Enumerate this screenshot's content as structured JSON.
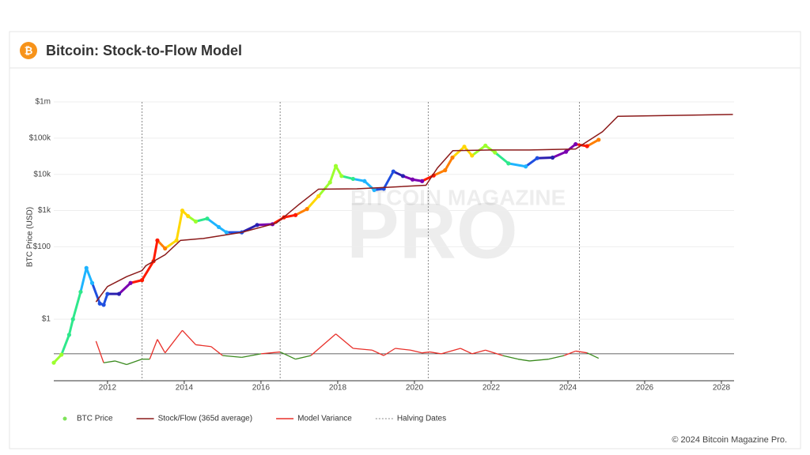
{
  "header": {
    "icon": "₿",
    "title": "Bitcoin: Stock-to-Flow Model"
  },
  "footer": "© 2024 Bitcoin Magazine Pro.",
  "chart_data": {
    "type": "line",
    "y_label": "BTC Price (USD)",
    "watermark": [
      "BITCOIN MAGAZINE",
      "PRO"
    ],
    "log_y": true,
    "xlim": [
      2010.6,
      2028.33
    ],
    "xticks": [
      2012,
      2014,
      2016,
      2018,
      2020,
      2022,
      2024,
      2026,
      2028
    ],
    "ylim": [
      0.02,
      1000000
    ],
    "yticks": [
      {
        "value": 1,
        "label": "$1"
      },
      {
        "value": 100,
        "label": "$100"
      },
      {
        "value": 1000,
        "label": "$1k"
      },
      {
        "value": 10000,
        "label": "$10k"
      },
      {
        "value": 100000,
        "label": "$100k"
      },
      {
        "value": 1000000,
        "label": "$1m"
      }
    ],
    "y2lim": [
      -1.5,
      14
    ],
    "colorscale": [
      "#ff1a00",
      "#ff7f00",
      "#ffd700",
      "#9cff2e",
      "#2ee88c",
      "#1eb4ff",
      "#1f4fe0",
      "#2a1fb0",
      "#7a00b0"
    ],
    "series": [
      {
        "name": "BTC Price",
        "color": "#7ee35a",
        "mode": "markers",
        "x": [
          2010.6,
          2010.8,
          2011.0,
          2011.1,
          2011.3,
          2011.45,
          2011.6,
          2011.8,
          2011.9,
          2012.0,
          2012.3,
          2012.6,
          2012.9,
          2013.2,
          2013.3,
          2013.5,
          2013.8,
          2013.95,
          2014.1,
          2014.3,
          2014.6,
          2014.9,
          2015.1,
          2015.5,
          2015.9,
          2016.3,
          2016.6,
          2016.9,
          2017.2,
          2017.5,
          2017.8,
          2017.95,
          2018.1,
          2018.4,
          2018.7,
          2018.95,
          2019.2,
          2019.45,
          2019.7,
          2019.95,
          2020.2,
          2020.5,
          2020.8,
          2020.99,
          2021.3,
          2021.5,
          2021.85,
          2022.1,
          2022.45,
          2022.9,
          2023.2,
          2023.6,
          2023.95,
          2024.2,
          2024.5,
          2024.8
        ],
        "values": [
          0.063,
          0.105,
          0.37,
          1,
          5.7,
          26,
          10,
          2.7,
          2.5,
          5,
          5,
          10,
          12,
          40,
          150,
          90,
          150,
          1000,
          700,
          500,
          600,
          350,
          250,
          250,
          400,
          420,
          650,
          750,
          1100,
          2500,
          6000,
          17000,
          9000,
          7500,
          6500,
          3700,
          4000,
          12000,
          9000,
          7200,
          6500,
          9300,
          13000,
          29000,
          58000,
          33000,
          62000,
          40000,
          20000,
          16500,
          28000,
          29000,
          42000,
          68000,
          60000,
          90000
        ]
      },
      {
        "name": "Stock/Flow (365d average)",
        "color": "#8b1a1a",
        "mode": "line",
        "x": [
          2011.7,
          2012.0,
          2012.5,
          2012.9,
          2013.0,
          2013.5,
          2013.9,
          2014.5,
          2015.5,
          2016.4,
          2016.55,
          2017.0,
          2017.5,
          2018.5,
          2019.5,
          2020.3,
          2020.6,
          2021.0,
          2022.0,
          2023.0,
          2024.2,
          2024.5,
          2024.9,
          2025.3,
          2028.3
        ],
        "values": [
          3,
          8,
          15,
          22,
          30,
          60,
          150,
          170,
          250,
          450,
          600,
          1500,
          3900,
          4000,
          4500,
          5000,
          15000,
          45000,
          47000,
          47000,
          50000,
          80000,
          150000,
          400000,
          450000
        ]
      },
      {
        "name": "Model Variance",
        "color": "#e8302a",
        "negative_color": "#3a8a1e",
        "mode": "line",
        "axis": "y2",
        "x": [
          2011.7,
          2011.9,
          2012.2,
          2012.5,
          2012.9,
          2013.1,
          2013.3,
          2013.5,
          2013.95,
          2014.3,
          2014.7,
          2015.0,
          2015.5,
          2016.0,
          2016.5,
          2016.9,
          2017.3,
          2017.95,
          2018.4,
          2018.9,
          2019.2,
          2019.5,
          2019.9,
          2020.2,
          2020.4,
          2020.7,
          2021.2,
          2021.5,
          2021.85,
          2022.3,
          2022.7,
          2023.0,
          2023.5,
          2023.9,
          2024.2,
          2024.5,
          2024.8
        ],
        "values": [
          0.7,
          -0.5,
          -0.4,
          -0.6,
          -0.3,
          -0.3,
          0.8,
          0.05,
          1.3,
          0.5,
          0.4,
          -0.1,
          -0.2,
          0.0,
          0.1,
          -0.3,
          -0.1,
          1.1,
          0.3,
          0.2,
          -0.1,
          0.3,
          0.2,
          0.05,
          0.1,
          0.0,
          0.3,
          0.0,
          0.2,
          -0.1,
          -0.3,
          -0.4,
          -0.3,
          -0.1,
          0.15,
          0.05,
          -0.25
        ]
      }
    ],
    "halvings": {
      "name": "Halving Dates",
      "color": "#8a8a8a",
      "x": [
        2012.9,
        2016.5,
        2020.36,
        2024.3
      ]
    }
  }
}
